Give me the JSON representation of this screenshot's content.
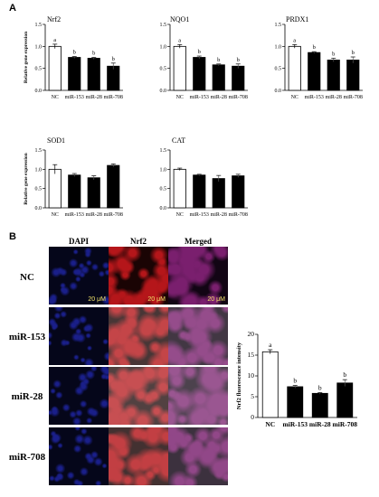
{
  "panel_labels": {
    "a": "A",
    "b": "B"
  },
  "micrographs": {
    "columns": [
      "DAPI",
      "Nrf2",
      "Merged"
    ],
    "rows": [
      "NC",
      "miR-153",
      "miR-28",
      "miR-708"
    ],
    "scale_bar_label": "20 μM",
    "colors": {
      "dapi": "#1a1f8a",
      "nrf2": "#b5161a",
      "merged": "#7a1f6e"
    }
  },
  "chart_data": [
    {
      "type": "bar",
      "title": "Nrf2",
      "ylabel": "Relative gene expression",
      "categories": [
        "NC",
        "miR-153",
        "miR-28",
        "miR-708"
      ],
      "values": [
        1.0,
        0.75,
        0.73,
        0.55
      ],
      "errors": [
        0.05,
        0.02,
        0.02,
        0.07
      ],
      "letters": [
        "a",
        "b",
        "b",
        "b"
      ],
      "ylim": [
        0,
        1.5
      ],
      "yticks": [
        "0.0",
        "0.5",
        "1.0",
        "1.5"
      ]
    },
    {
      "type": "bar",
      "title": "NQO1",
      "ylabel": "",
      "categories": [
        "NC",
        "miR-153",
        "miR-28",
        "miR-708"
      ],
      "values": [
        1.0,
        0.75,
        0.58,
        0.55
      ],
      "errors": [
        0.04,
        0.03,
        0.02,
        0.05
      ],
      "letters": [
        "a",
        "b",
        "b",
        "b"
      ],
      "ylim": [
        0,
        1.5
      ],
      "yticks": [
        "0.0",
        "0.5",
        "1.0",
        "1.5"
      ]
    },
    {
      "type": "bar",
      "title": "PRDX1",
      "ylabel": "",
      "categories": [
        "NC",
        "miR-153",
        "miR-28",
        "miR-708"
      ],
      "values": [
        1.0,
        0.86,
        0.69,
        0.69
      ],
      "errors": [
        0.04,
        0.02,
        0.04,
        0.07
      ],
      "letters": [
        "a",
        "b",
        "b",
        "b"
      ],
      "ylim": [
        0,
        1.5
      ],
      "yticks": [
        "0.0",
        "0.5",
        "1.0",
        "1.5"
      ]
    },
    {
      "type": "bar",
      "title": "SOD1",
      "ylabel": "Relative gene expression",
      "categories": [
        "NC",
        "miR-153",
        "miR-28",
        "miR-708"
      ],
      "values": [
        1.0,
        0.85,
        0.78,
        1.1
      ],
      "errors": [
        0.12,
        0.04,
        0.05,
        0.04
      ],
      "letters": [
        "",
        "",
        "",
        ""
      ],
      "ylim": [
        0,
        1.5
      ],
      "yticks": [
        "0.0",
        "0.5",
        "1.0",
        "1.5"
      ]
    },
    {
      "type": "bar",
      "title": "CAT",
      "ylabel": "",
      "categories": [
        "NC",
        "miR-153",
        "miR-28",
        "miR-708"
      ],
      "values": [
        1.0,
        0.85,
        0.76,
        0.83
      ],
      "errors": [
        0.03,
        0.02,
        0.08,
        0.04
      ],
      "letters": [
        "",
        "",
        "",
        ""
      ],
      "ylim": [
        0,
        1.5
      ],
      "yticks": [
        "0.0",
        "0.5",
        "1.0",
        "1.5"
      ]
    },
    {
      "type": "bar",
      "title": "",
      "ylabel": "Nrf2 fluorescence intensity",
      "categories": [
        "NC",
        "miR-153",
        "miR-28",
        "miR-708"
      ],
      "values": [
        15.8,
        7.4,
        5.8,
        8.3
      ],
      "errors": [
        0.5,
        0.3,
        0.2,
        0.8
      ],
      "letters": [
        "a",
        "b",
        "b",
        "b"
      ],
      "ylim": [
        0,
        20
      ],
      "yticks": [
        "0",
        "5",
        "10",
        "15",
        "20"
      ]
    }
  ]
}
